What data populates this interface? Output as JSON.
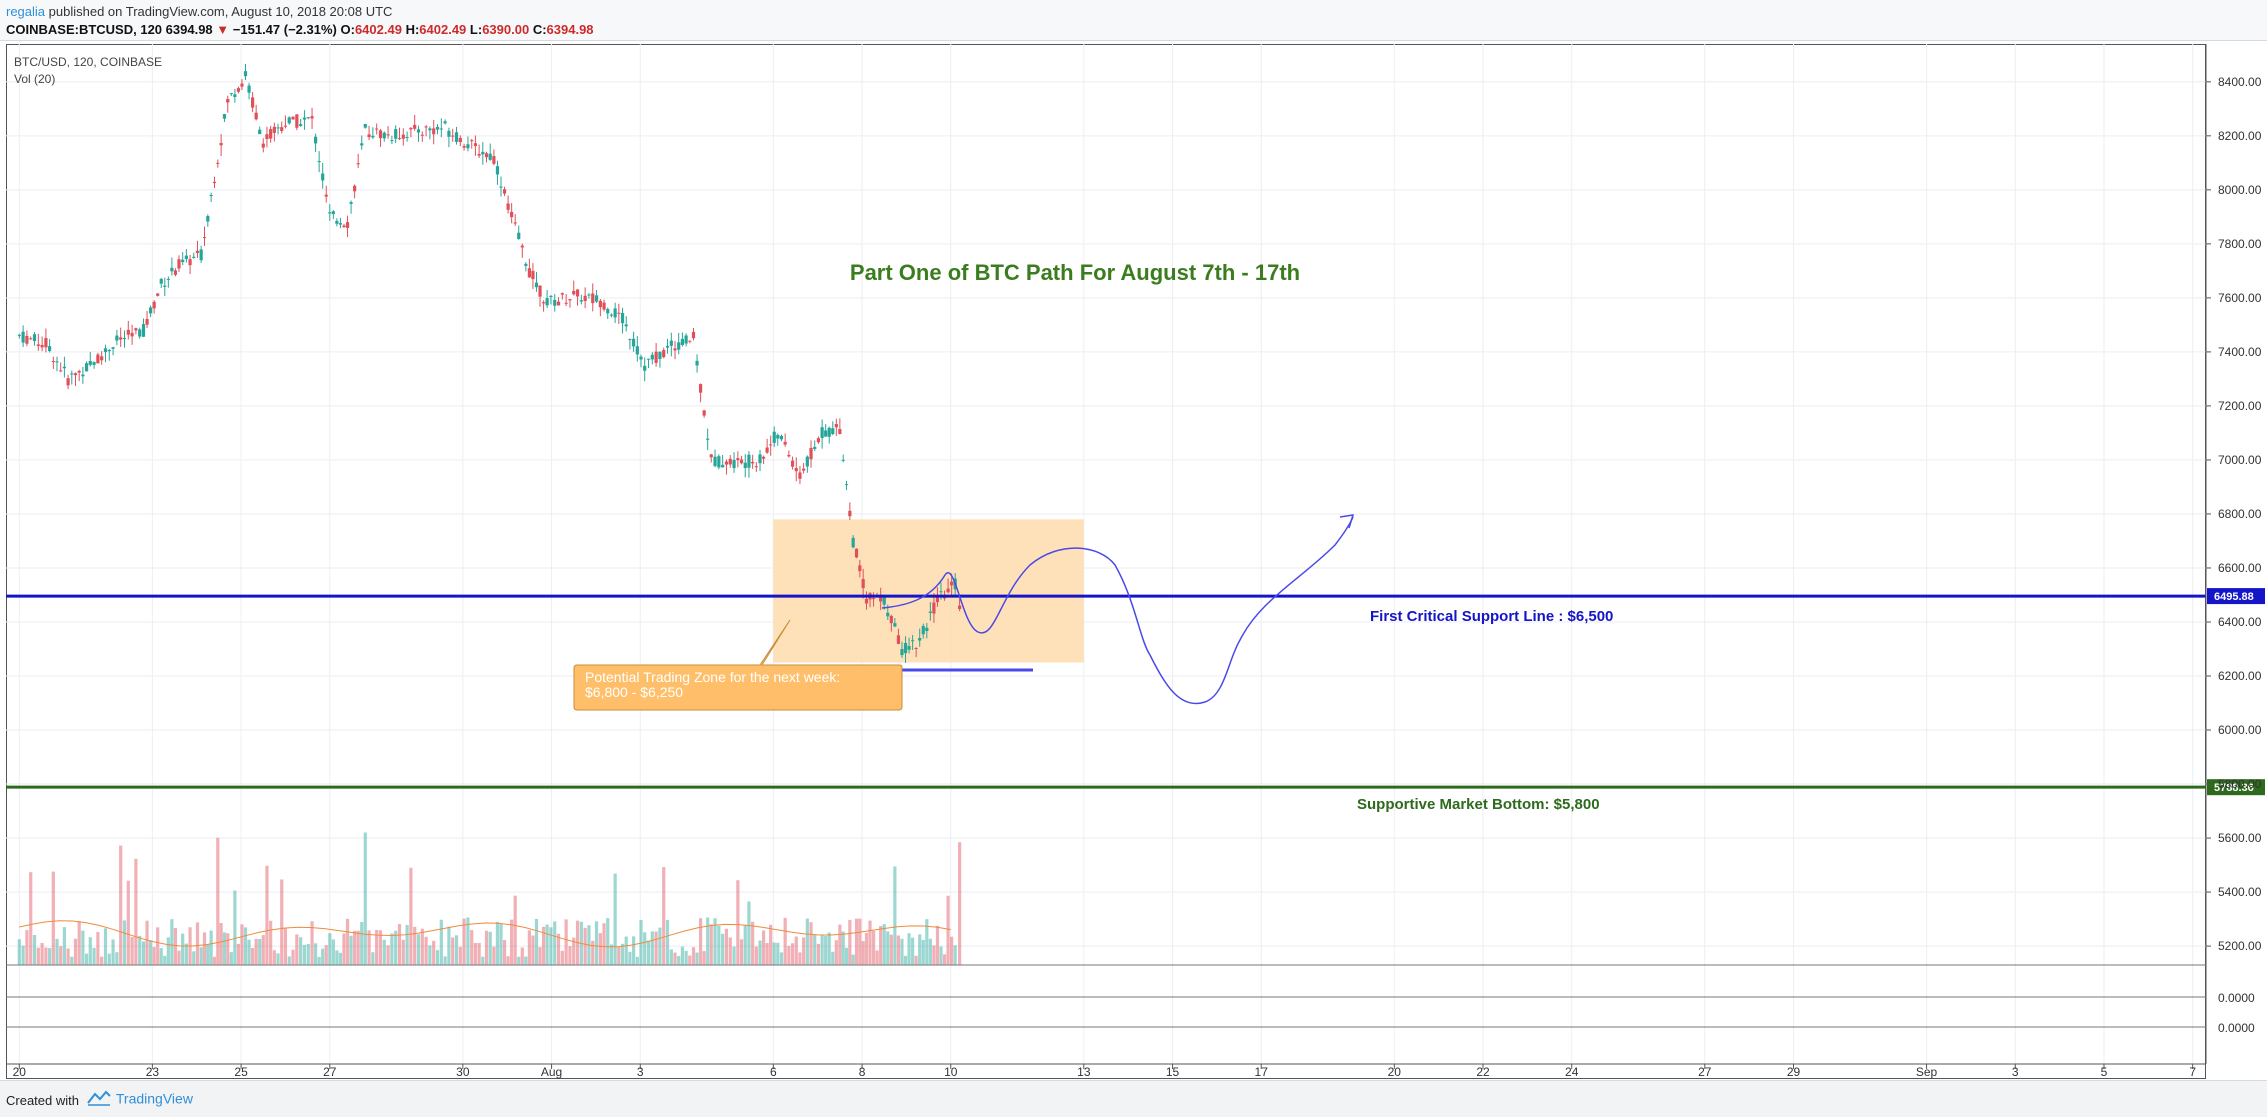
{
  "header": {
    "username": "regalia",
    "published_text": "published on TradingView.com, August 10, 2018 20:08 UTC",
    "symbol": "COINBASE:BTCUSD, 120",
    "last_price": "6394.98",
    "change_arrow": "▼",
    "change": "−151.47 (−2.31%)",
    "open_label": "O:",
    "open": "6402.49",
    "high_label": "H:",
    "high": "6402.49",
    "low_label": "L:",
    "low": "6390.00",
    "close_label": "C:",
    "close": "6394.98"
  },
  "legend": {
    "pair": "BTC/USD, 120, COINBASE",
    "volume": "Vol (20)"
  },
  "footer": {
    "created_with": "Created with",
    "brand": "TradingView"
  },
  "chart_data": {
    "type": "line",
    "title": "Part One of BTC Path For August 7th - 17th",
    "xlabel": "",
    "ylabel": "",
    "ylim": [
      5130,
      8540
    ],
    "x_ticks": [
      "20",
      "23",
      "25",
      "27",
      "30",
      "Aug",
      "3",
      "6",
      "8",
      "10",
      "13",
      "15",
      "17",
      "20",
      "22",
      "24",
      "27",
      "29",
      "Sep",
      "3",
      "5",
      "7"
    ],
    "x_tick_values": [
      0,
      3,
      5,
      7,
      10,
      12,
      14,
      17,
      19,
      21,
      24,
      26,
      28,
      31,
      33,
      35,
      38,
      40,
      43,
      45,
      47,
      49
    ],
    "x_range": [
      -0.3,
      49.3
    ],
    "y_ticks": [
      "8400.00",
      "8200.00",
      "8000.00",
      "7800.00",
      "7600.00",
      "7400.00",
      "7200.00",
      "7000.00",
      "6800.00",
      "6600.00",
      "6400.00",
      "6200.00",
      "6000.00",
      "5800.00",
      "5600.00",
      "5400.00",
      "5200.00"
    ],
    "y_tick_values": [
      8400,
      8200,
      8000,
      7800,
      7600,
      7400,
      7200,
      7000,
      6800,
      6600,
      6400,
      6200,
      6000,
      5800,
      5600,
      5400,
      5200
    ],
    "lower_pane_ticks": [
      "0.0000",
      "0.0000"
    ],
    "series": [
      {
        "name": "",
        "color": "#222222",
        "points": [
          [
            0,
            7460
          ],
          [
            0.6,
            7430
          ],
          [
            1.1,
            7300
          ],
          [
            1.6,
            7350
          ],
          [
            2.2,
            7440
          ],
          [
            2.8,
            7480
          ],
          [
            3.2,
            7650
          ],
          [
            3.6,
            7720
          ],
          [
            4.1,
            7760
          ],
          [
            4.4,
            8050
          ],
          [
            4.7,
            8330
          ],
          [
            5.1,
            8420
          ],
          [
            5.5,
            8180
          ],
          [
            6.0,
            8250
          ],
          [
            6.6,
            8260
          ],
          [
            7.0,
            7900
          ],
          [
            7.4,
            7880
          ],
          [
            7.8,
            8220
          ],
          [
            8.4,
            8200
          ],
          [
            9.0,
            8220
          ],
          [
            9.6,
            8230
          ],
          [
            10.2,
            8160
          ],
          [
            10.7,
            8120
          ],
          [
            11.1,
            7900
          ],
          [
            11.5,
            7700
          ],
          [
            11.9,
            7580
          ],
          [
            12.5,
            7610
          ],
          [
            13.1,
            7590
          ],
          [
            13.6,
            7520
          ],
          [
            14.1,
            7350
          ],
          [
            14.7,
            7420
          ],
          [
            15.2,
            7450
          ],
          [
            15.6,
            7000
          ],
          [
            16.2,
            6990
          ],
          [
            16.7,
            7000
          ],
          [
            17.1,
            7100
          ],
          [
            17.6,
            6940
          ],
          [
            18.1,
            7100
          ],
          [
            18.5,
            7120
          ],
          [
            18.8,
            6700
          ],
          [
            19.1,
            6490
          ],
          [
            19.5,
            6480
          ],
          [
            19.9,
            6300
          ],
          [
            20.3,
            6330
          ],
          [
            20.7,
            6480
          ],
          [
            21.1,
            6540
          ],
          [
            21.3,
            6400
          ]
        ]
      }
    ],
    "volume_baseline_label": "",
    "horizontal_lines": [
      {
        "label": "First Critical Support Line : $6,500",
        "price_tag": "6495.88",
        "value": 6495.88,
        "color": "#1515c8"
      },
      {
        "label": "Supportive Market Bottom: $5,800",
        "price_tag": "5788.36",
        "value": 5788.36,
        "color": "#2d6a1d"
      }
    ],
    "annotations": {
      "zone_text": "Potential Trading Zone for the next week:\n$6,800 - $6,250",
      "zone_range": [
        6250,
        6780
      ],
      "zone_x_range": [
        17,
        24
      ],
      "projection_color": "#4a4ae8"
    },
    "colors": {
      "up": "#26a69a",
      "down": "#e0505a",
      "title": "#3b7d1e",
      "zone": "#ffd9a8"
    }
  }
}
